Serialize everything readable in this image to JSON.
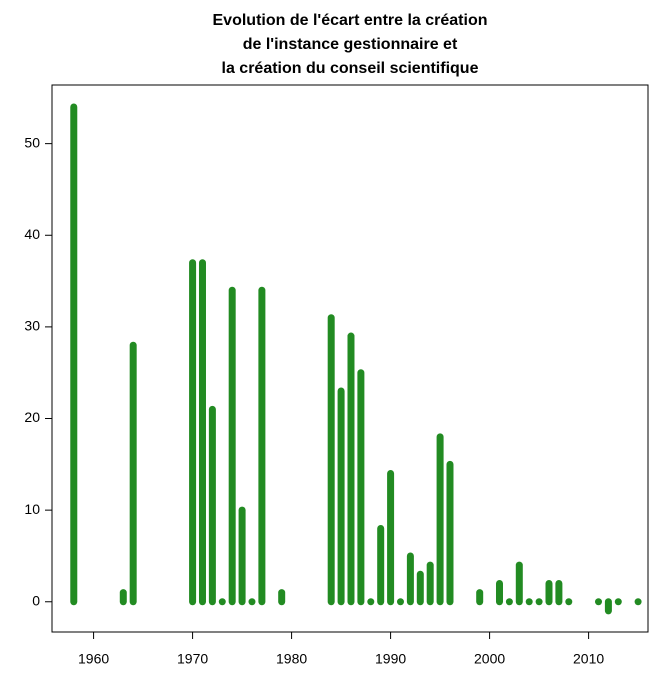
{
  "chart_data": {
    "type": "bar",
    "title": [
      "Evolution de l'écart entre la création",
      "de l'instance gestionnaire et",
      "la création du conseil scientifique"
    ],
    "x": [
      1958,
      1963,
      1964,
      1970,
      1971,
      1972,
      1973,
      1974,
      1975,
      1976,
      1977,
      1979,
      1984,
      1985,
      1986,
      1987,
      1988,
      1989,
      1990,
      1991,
      1992,
      1993,
      1994,
      1995,
      1996,
      1999,
      2001,
      2002,
      2003,
      2004,
      2005,
      2006,
      2007,
      2008,
      2011,
      2012,
      2013,
      2015
    ],
    "values": [
      54,
      1,
      28,
      37,
      37,
      21,
      0,
      34,
      10,
      0,
      34,
      1,
      31,
      23,
      29,
      25,
      0,
      8,
      14,
      0,
      5,
      3,
      4,
      18,
      15,
      1,
      2,
      0,
      4,
      0,
      0,
      2,
      2,
      0,
      0,
      -1,
      0,
      0
    ],
    "color": "#228b22",
    "xlim": [
      1955.8,
      2016
    ],
    "xticks": [
      1960,
      1970,
      1980,
      1990,
      2000,
      2010
    ],
    "ylim": [
      -3.3,
      56.4
    ],
    "yticks": [
      0,
      10,
      20,
      30,
      40,
      50
    ]
  }
}
